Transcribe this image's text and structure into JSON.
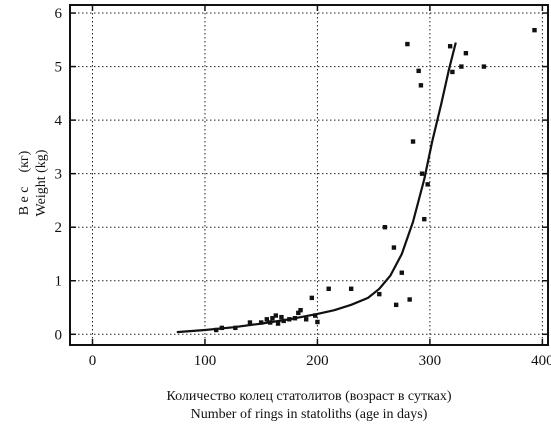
{
  "chart_data": {
    "type": "scatter",
    "xlabel_ru": "Количество колец статолитов (возраст в сутках)",
    "xlabel_en": "Number of rings in statoliths (age in days)",
    "ylabel_ru": "В е с    (кг)",
    "ylabel_en": "Weight (kg)",
    "xlim": [
      -20,
      405
    ],
    "ylim": [
      -0.2,
      6.15
    ],
    "x_ticks": [
      0,
      100,
      200,
      300,
      400
    ],
    "y_ticks": [
      0,
      1,
      2,
      3,
      4,
      5,
      6
    ],
    "grid": true,
    "series": [
      {
        "kind": "points",
        "points": [
          [
            110,
            0.08
          ],
          [
            115,
            0.12
          ],
          [
            127,
            0.12
          ],
          [
            140,
            0.22
          ],
          [
            150,
            0.22
          ],
          [
            155,
            0.28
          ],
          [
            158,
            0.22
          ],
          [
            160,
            0.3
          ],
          [
            163,
            0.35
          ],
          [
            165,
            0.2
          ],
          [
            168,
            0.32
          ],
          [
            170,
            0.25
          ],
          [
            175,
            0.28
          ],
          [
            180,
            0.3
          ],
          [
            183,
            0.4
          ],
          [
            185,
            0.45
          ],
          [
            190,
            0.28
          ],
          [
            195,
            0.68
          ],
          [
            198,
            0.35
          ],
          [
            200,
            0.23
          ],
          [
            210,
            0.85
          ],
          [
            230,
            0.85
          ],
          [
            255,
            0.75
          ],
          [
            260,
            2.0
          ],
          [
            268,
            1.62
          ],
          [
            270,
            0.55
          ],
          [
            275,
            1.15
          ],
          [
            280,
            5.42
          ],
          [
            282,
            0.65
          ],
          [
            285,
            3.6
          ],
          [
            290,
            4.92
          ],
          [
            292,
            4.65
          ],
          [
            293,
            3.0
          ],
          [
            295,
            2.15
          ],
          [
            298,
            2.8
          ],
          [
            318,
            5.38
          ],
          [
            320,
            4.9
          ],
          [
            328,
            5.0
          ],
          [
            332,
            5.25
          ],
          [
            348,
            5.0
          ],
          [
            393,
            5.68
          ]
        ]
      },
      {
        "kind": "curve",
        "points": [
          [
            75,
            0.04
          ],
          [
            100,
            0.08
          ],
          [
            125,
            0.13
          ],
          [
            150,
            0.2
          ],
          [
            175,
            0.28
          ],
          [
            200,
            0.38
          ],
          [
            215,
            0.45
          ],
          [
            230,
            0.55
          ],
          [
            245,
            0.68
          ],
          [
            255,
            0.85
          ],
          [
            265,
            1.1
          ],
          [
            275,
            1.5
          ],
          [
            285,
            2.1
          ],
          [
            295,
            2.9
          ],
          [
            302,
            3.6
          ],
          [
            310,
            4.3
          ],
          [
            317,
            4.95
          ],
          [
            323,
            5.45
          ]
        ]
      }
    ]
  }
}
